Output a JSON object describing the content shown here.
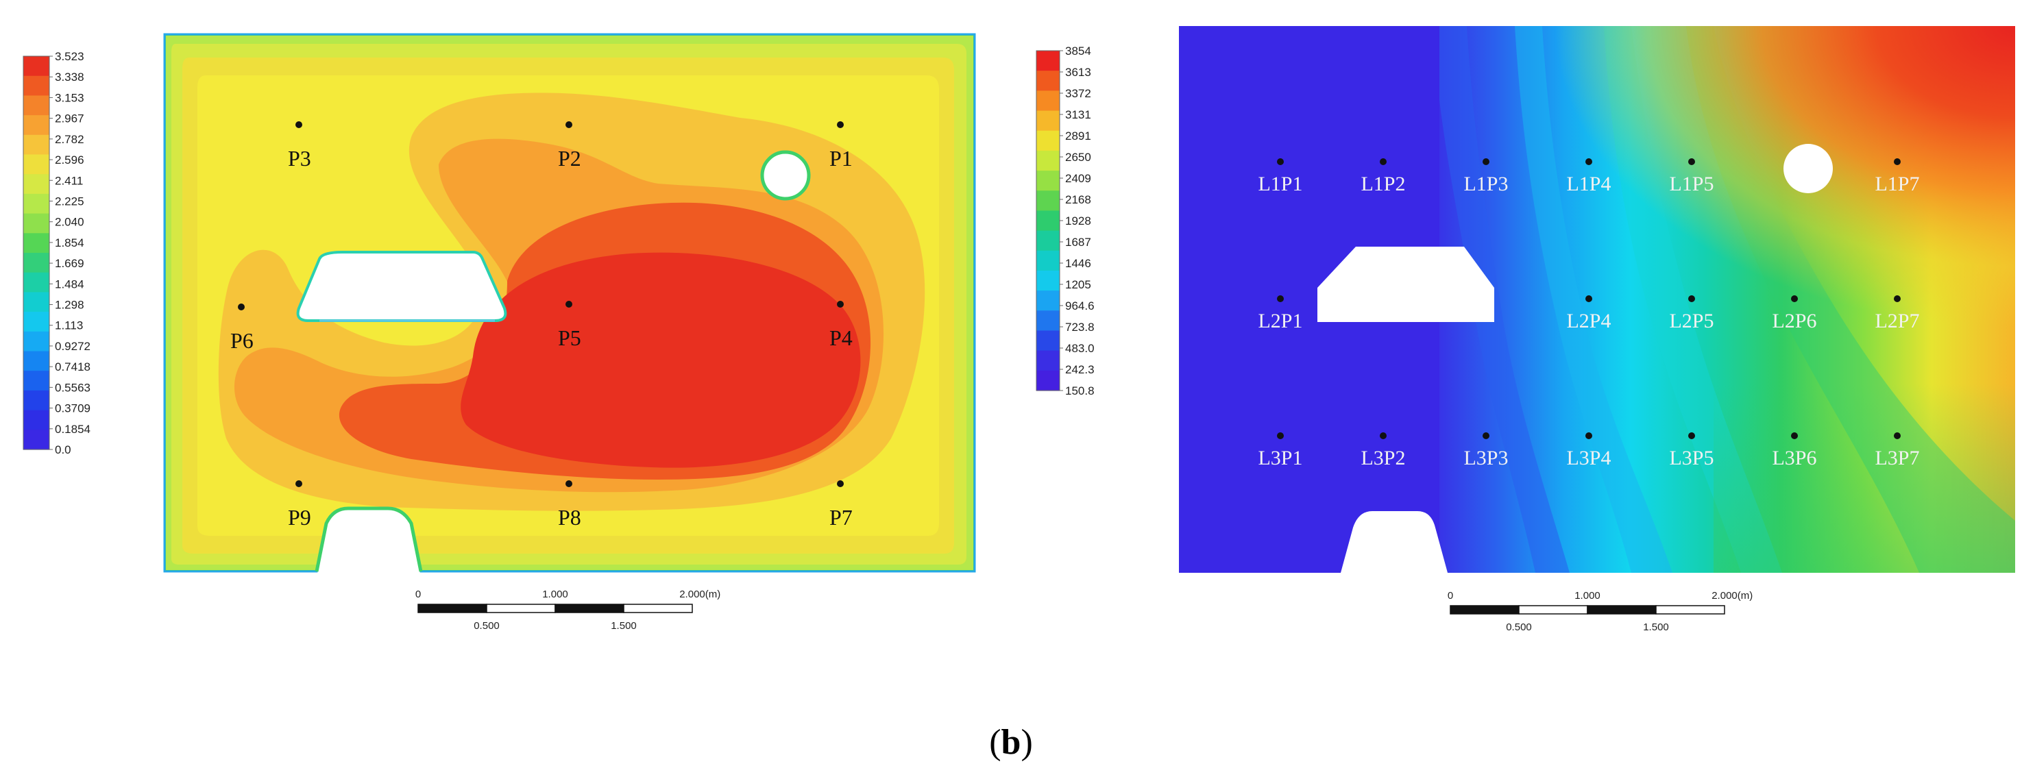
{
  "caption": {
    "open": "(",
    "letter": "b",
    "close": ")"
  },
  "chart_data": [
    {
      "type": "heatmap",
      "title": "",
      "colorbar": {
        "min": 0.0,
        "max": 3.523,
        "tick_labels": [
          "3.523",
          "3.338",
          "3.153",
          "2.967",
          "2.782",
          "2.596",
          "2.411",
          "2.225",
          "2.040",
          "1.854",
          "1.669",
          "1.484",
          "1.298",
          "1.113",
          "0.9272",
          "0.7418",
          "0.5563",
          "0.3709",
          "0.1854",
          "0.0"
        ]
      },
      "scale_bar": {
        "top_labels": [
          "0",
          "1.000",
          "2.000"
        ],
        "unit": "(m)",
        "bottom_labels": [
          "0.500",
          "1.500"
        ]
      },
      "points": [
        "P1",
        "P2",
        "P3",
        "P4",
        "P5",
        "P6",
        "P7",
        "P8",
        "P9"
      ]
    },
    {
      "type": "heatmap",
      "title": "",
      "colorbar": {
        "min": 150.8,
        "max": 3854,
        "tick_labels": [
          "3854",
          "3613",
          "3372",
          "3131",
          "2891",
          "2650",
          "2409",
          "2168",
          "1928",
          "1687",
          "1446",
          "1205",
          "964.6",
          "723.8",
          "483.0",
          "242.3",
          "150.8"
        ]
      },
      "scale_bar": {
        "top_labels": [
          "0",
          "1.000",
          "2.000"
        ],
        "unit": "(m)",
        "bottom_labels": [
          "0.500",
          "1.500"
        ]
      },
      "points": [
        [
          "L1P1",
          "L1P2",
          "L1P3",
          "L1P4",
          "L1P5",
          "L1P7"
        ],
        [
          "L2P1",
          "L2P4",
          "L2P5",
          "L2P6",
          "L2P7"
        ],
        [
          "L3P1",
          "L3P2",
          "L3P3",
          "L3P4",
          "L3P5",
          "L3P6",
          "L3P7"
        ]
      ]
    }
  ],
  "colors": {
    "velocity_scale": [
      "#e83020",
      "#ef5a22",
      "#f4832a",
      "#f7a232",
      "#f6c43a",
      "#eedf3c",
      "#d6e844",
      "#b5e84a",
      "#8fe04c",
      "#55d655",
      "#33cf7a",
      "#1ccfa6",
      "#12cdd0",
      "#14c8ee",
      "#16aaf3",
      "#1585f2",
      "#1a62ee",
      "#2242ea",
      "#2e2ee6",
      "#3a28e4"
    ],
    "conc_scale": [
      "#ea2420",
      "#f05a1e",
      "#f68a22",
      "#f6b82a",
      "#eee030",
      "#c8e83c",
      "#96e044",
      "#5ed450",
      "#2ecc6e",
      "#1acc9c",
      "#12ccc8",
      "#14caec",
      "#1aa4f2",
      "#1f76ee",
      "#2848e8",
      "#3a2ee4",
      "#4420e0"
    ]
  }
}
